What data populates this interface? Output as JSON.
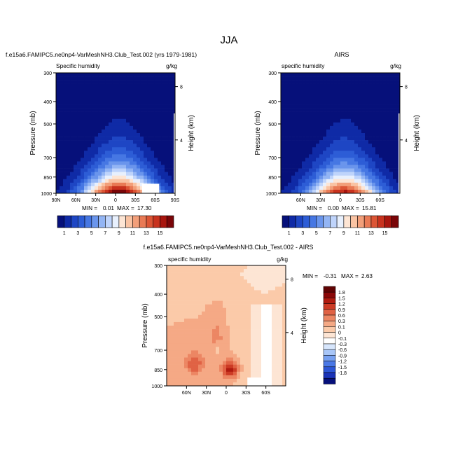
{
  "page_title": "JJA",
  "colors": {
    "panel_scale": [
      "#06107a",
      "#0f2aa6",
      "#1e46c4",
      "#2d5dd6",
      "#4677e3",
      "#6a95ec",
      "#93b5f4",
      "#bfd4fb",
      "#e8f0fd",
      "#fde5d4",
      "#f9c3a3",
      "#f29f7a",
      "#e97a55",
      "#dc5535",
      "#c8321e",
      "#a8150e",
      "#7a0508"
    ],
    "diff_scale": [
      "#06107a",
      "#1a33b8",
      "#2d56d6",
      "#4a78e6",
      "#76a0f1",
      "#a8c6f8",
      "#d7e6fc",
      "#ffffff",
      "#fde5d4",
      "#fbcaa9",
      "#f5a985",
      "#ec8663",
      "#e06244",
      "#cc3b25",
      "#b01b10",
      "#8a0707",
      "#600303"
    ]
  },
  "chart_data": [
    {
      "type": "heatmap",
      "title_left": "f.e15a6.FAMIPC5.ne0np4-VarMeshNH3.Club_Test.002 (yrs 1979-1981)",
      "subtitle_left": "Specific humidity",
      "units": "g/kg",
      "ylabel": "Pressure (mb)",
      "ylabel_right": "Height (km)",
      "x_ticks": [
        "90N",
        "60N",
        "30N",
        "0",
        "30S",
        "60S",
        "90S"
      ],
      "x_values": [
        90,
        60,
        30,
        0,
        -30,
        -60,
        -90
      ],
      "y_ticks": [
        "300",
        "400",
        "500",
        "700",
        "850",
        "1000"
      ],
      "y_values": [
        300,
        400,
        500,
        700,
        850,
        1000
      ],
      "right_ticks": [
        "8",
        "4"
      ],
      "right_values": [
        8,
        4
      ],
      "xlim": [
        90,
        -90
      ],
      "ylim": [
        1000,
        300
      ],
      "y_scale": "log",
      "min_label": "MIN =",
      "min": "0.01",
      "max_label": "MAX =",
      "max": "17.30",
      "colorbar_labels": [
        "1",
        "3",
        "5",
        "7",
        "9",
        "11",
        "13",
        "15"
      ],
      "colorbar_levels": [
        0,
        1,
        2,
        3,
        4,
        5,
        6,
        7,
        8,
        9,
        10,
        11,
        12,
        13,
        14,
        15,
        16
      ]
    },
    {
      "type": "heatmap",
      "title_center": "AIRS",
      "subtitle_left": "specific humidity",
      "units": "g/kg",
      "ylabel": "Pressure (mb)",
      "ylabel_right": "Height (km)",
      "x_ticks": [
        "60N",
        "30N",
        "0",
        "30S",
        "60S"
      ],
      "x_values": [
        60,
        30,
        0,
        -30,
        -60
      ],
      "y_ticks": [
        "300",
        "400",
        "500",
        "700",
        "850",
        "1000"
      ],
      "y_values": [
        300,
        400,
        500,
        700,
        850,
        1000
      ],
      "right_ticks": [
        "8",
        "4"
      ],
      "right_values": [
        8,
        4
      ],
      "xlim": [
        90,
        -90
      ],
      "ylim": [
        1000,
        300
      ],
      "y_scale": "log",
      "min_label": "MIN =",
      "min": "0.00",
      "max_label": "MAX =",
      "max": "15.81",
      "colorbar_labels": [
        "1",
        "3",
        "5",
        "7",
        "9",
        "11",
        "13",
        "15"
      ],
      "colorbar_levels": [
        0,
        1,
        2,
        3,
        4,
        5,
        6,
        7,
        8,
        9,
        10,
        11,
        12,
        13,
        14,
        15,
        16
      ]
    },
    {
      "type": "heatmap",
      "title_center": "f.e15a6.FAMIPC5.ne0np4-VarMeshNH3.Club_Test.002 - AIRS",
      "subtitle_left": "specific humidity",
      "units": "g/kg",
      "ylabel": "Pressure (mb)",
      "ylabel_right": "Height (km)",
      "x_ticks": [
        "60N",
        "30N",
        "0",
        "30S",
        "60S"
      ],
      "x_values": [
        60,
        30,
        0,
        -30,
        -60
      ],
      "y_ticks": [
        "300",
        "400",
        "500",
        "700",
        "850",
        "1000"
      ],
      "y_values": [
        300,
        400,
        500,
        700,
        850,
        1000
      ],
      "right_ticks": [
        "8",
        "4"
      ],
      "right_values": [
        8,
        4
      ],
      "xlim": [
        90,
        -90
      ],
      "ylim": [
        1000,
        300
      ],
      "y_scale": "log",
      "min_label": "MIN =",
      "min": "-0.31",
      "max_label": "MAX =",
      "max": "2.63",
      "colorbar_labels": [
        "1.8",
        "1.5",
        "1.2",
        "0.9",
        "0.6",
        "0.3",
        "0.1",
        "0",
        "-0.1",
        "-0.3",
        "-0.6",
        "-0.9",
        "-1.2",
        "-1.5",
        "-1.8"
      ],
      "colorbar_levels": [
        1.8,
        1.5,
        1.2,
        0.9,
        0.6,
        0.3,
        0.1,
        0,
        -0.1,
        -0.3,
        -0.6,
        -0.9,
        -1.2,
        -1.5,
        -1.8
      ]
    }
  ]
}
